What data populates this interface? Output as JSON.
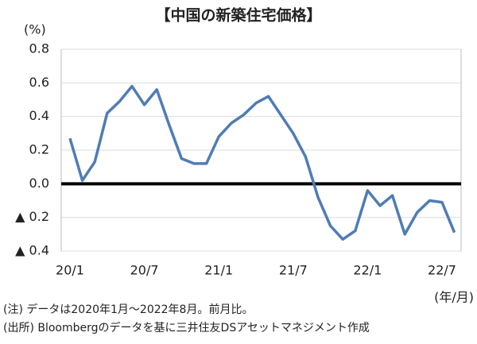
{
  "chart_data": {
    "type": "line",
    "title": "【中国の新築住宅価格】",
    "y_unit": "(%)",
    "x_unit": "(年/月)",
    "notes": [
      "(注) データは2020年1月～2022年8月。前月比。",
      "(出所) Bloombergのデータを基に三井住友DSアセットマネジメント作成"
    ],
    "categories": [
      "20/1",
      null,
      null,
      null,
      null,
      null,
      "20/7",
      null,
      null,
      null,
      null,
      null,
      "21/1",
      null,
      null,
      null,
      null,
      null,
      "21/7",
      null,
      null,
      null,
      null,
      null,
      "22/1",
      null,
      null,
      null,
      null,
      null,
      "22/7",
      null
    ],
    "series": [
      {
        "name": "新築住宅価格",
        "color": "#4f7cb5",
        "values": [
          0.27,
          0.02,
          0.13,
          0.42,
          0.49,
          0.58,
          0.47,
          0.56,
          0.35,
          0.15,
          0.12,
          0.12,
          0.28,
          0.36,
          0.41,
          0.48,
          0.52,
          0.41,
          0.3,
          0.16,
          -0.08,
          -0.25,
          -0.33,
          -0.28,
          -0.04,
          -0.13,
          -0.07,
          -0.3,
          -0.17,
          -0.1,
          -0.11,
          -0.29
        ]
      }
    ],
    "ylim": [
      -0.4,
      0.8
    ],
    "yticks": [
      {
        "value": -0.4,
        "label": "▲ 0.4"
      },
      {
        "value": -0.2,
        "label": "▲ 0.2"
      },
      {
        "value": 0,
        "label": "0.0"
      },
      0.2,
      0.4,
      0.6,
      0.8
    ],
    "grid": true
  }
}
